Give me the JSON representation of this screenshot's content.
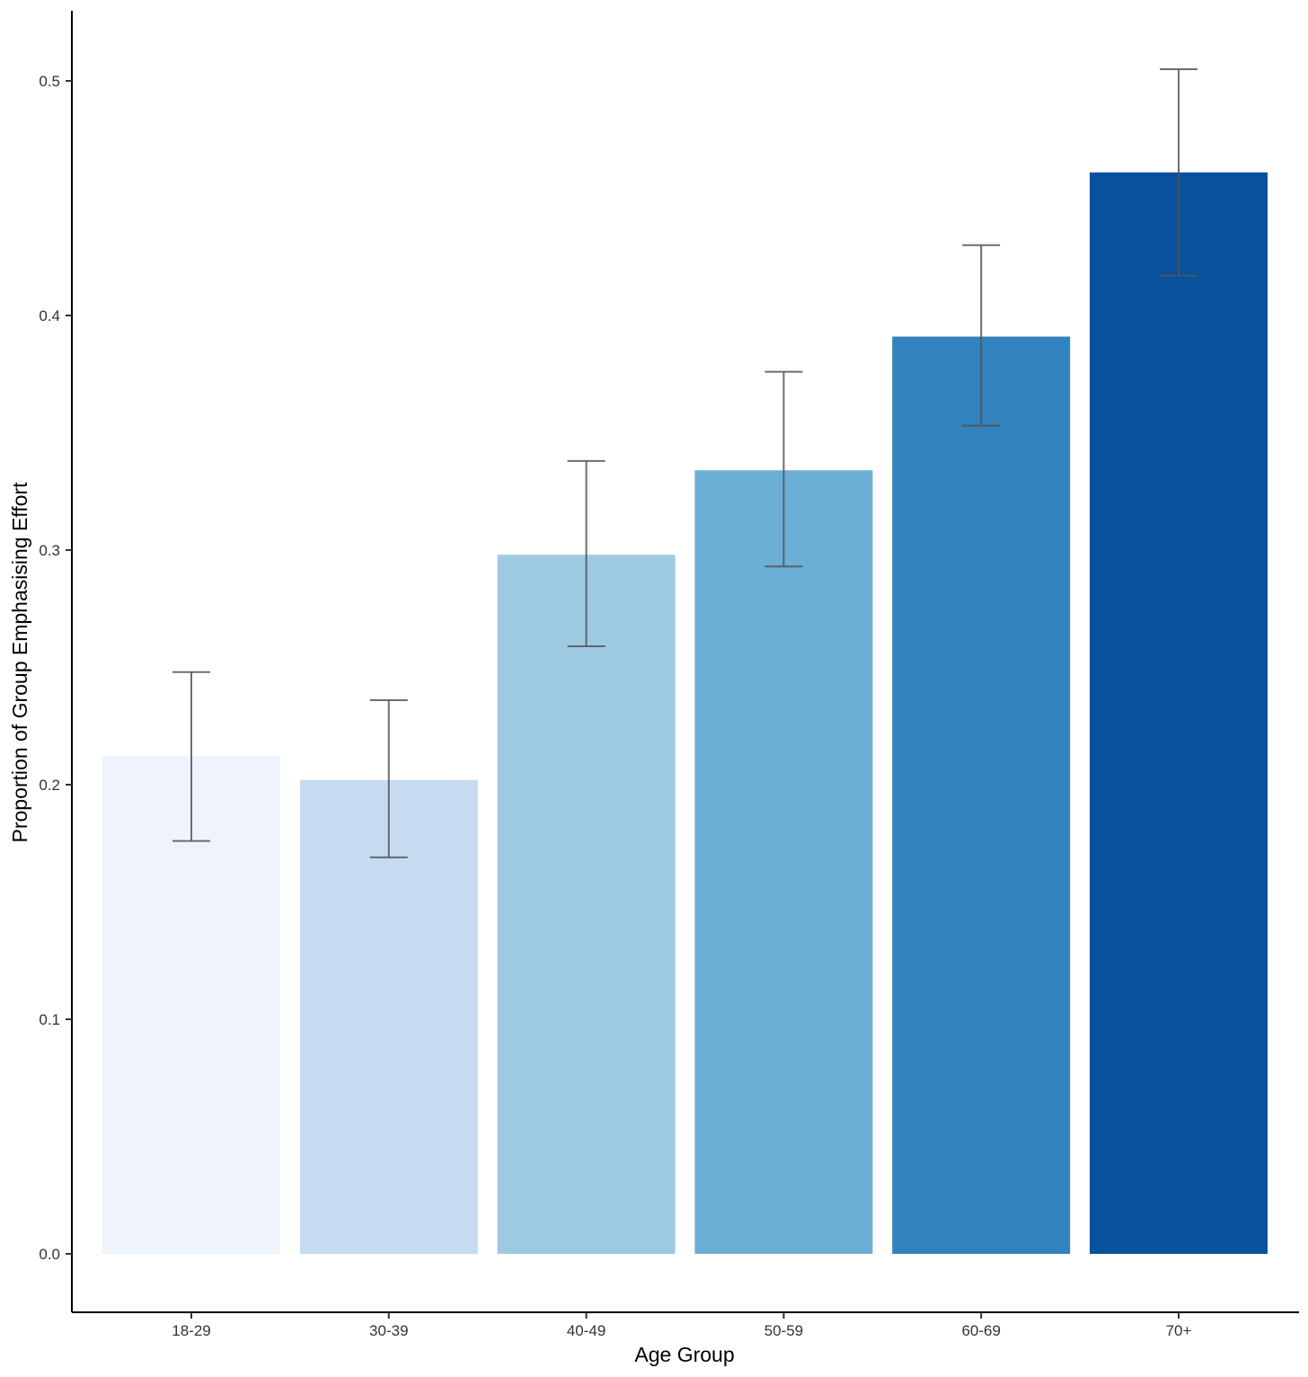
{
  "chart_data": {
    "type": "bar",
    "title": "",
    "xlabel": "Age Group",
    "ylabel": "Proportion of Group Emphasising Effort",
    "categories": [
      "18-29",
      "30-39",
      "40-49",
      "50-59",
      "60-69",
      "70+"
    ],
    "values": [
      0.212,
      0.202,
      0.298,
      0.334,
      0.391,
      0.461
    ],
    "error_low": [
      0.176,
      0.169,
      0.259,
      0.293,
      0.353,
      0.417
    ],
    "error_high": [
      0.248,
      0.236,
      0.338,
      0.376,
      0.43,
      0.505
    ],
    "colors": [
      "#eef3fd",
      "#c6dbef",
      "#9ecae1",
      "#6baed6",
      "#3182bd",
      "#08519c"
    ],
    "error_bar_color": "#555555",
    "ylim": [
      -0.025,
      0.53
    ],
    "yticks": [
      0.0,
      0.1,
      0.2,
      0.3,
      0.4,
      0.5
    ],
    "ytick_labels": [
      "0.0",
      "0.1",
      "0.2",
      "0.3",
      "0.4",
      "0.5"
    ],
    "grid": false,
    "legend": "none"
  }
}
